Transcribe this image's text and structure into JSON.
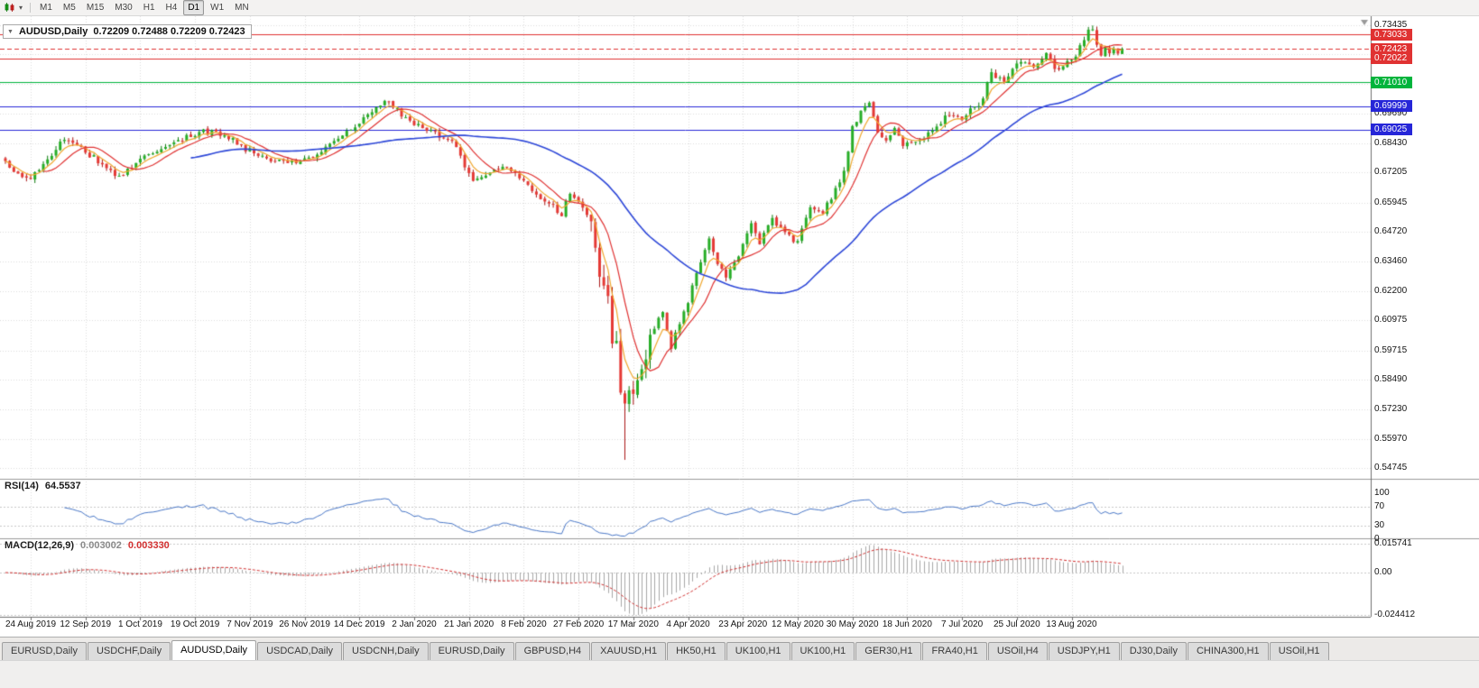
{
  "icons": {
    "dropdown_caret": "▾",
    "title_marker": "▼"
  },
  "toolbar": {
    "timeframes": [
      "M1",
      "M5",
      "M15",
      "M30",
      "H1",
      "H4",
      "D1",
      "W1",
      "MN"
    ],
    "active_timeframe": "D1"
  },
  "chart_header": {
    "title": "AUDUSD,Daily",
    "ohlc_text": "0.72209 0.72488 0.72209 0.72423"
  },
  "price_axis": {
    "scale_labels": [
      {
        "text": "0.73435",
        "price": 0.73435
      },
      {
        "text": "0.69690",
        "price": 0.6969
      },
      {
        "text": "0.68430",
        "price": 0.6843
      },
      {
        "text": "0.67205",
        "price": 0.67205
      },
      {
        "text": "0.65945",
        "price": 0.65945
      },
      {
        "text": "0.64720",
        "price": 0.6472
      },
      {
        "text": "0.63460",
        "price": 0.6346
      },
      {
        "text": "0.62200",
        "price": 0.622
      },
      {
        "text": "0.60975",
        "price": 0.60975
      },
      {
        "text": "0.59715",
        "price": 0.59715
      },
      {
        "text": "0.58490",
        "price": 0.5849
      },
      {
        "text": "0.57230",
        "price": 0.5723
      },
      {
        "text": "0.55970",
        "price": 0.5597
      },
      {
        "text": "0.54745",
        "price": 0.54745
      }
    ],
    "line_labels": [
      {
        "text": "0.73033",
        "price": 0.73033,
        "color": "#e03232",
        "kind": "resistance-upper"
      },
      {
        "text": "0.72423",
        "price": 0.72423,
        "color": "#e03232",
        "kind": "current-price"
      },
      {
        "text": "0.72022",
        "price": 0.72022,
        "color": "#e03232",
        "kind": "resistance-lower"
      },
      {
        "text": "0.71010",
        "price": 0.7101,
        "color": "#00b43c",
        "kind": "support-green"
      },
      {
        "text": "0.69999",
        "price": 0.69999,
        "color": "#2626d8",
        "kind": "support-blue-upper"
      },
      {
        "text": "0.69025",
        "price": 0.69025,
        "color": "#2626d8",
        "kind": "support-blue-lower"
      }
    ]
  },
  "indicators": {
    "rsi": {
      "name": "RSI(14)",
      "value": "64.5537",
      "axis_labels": [
        {
          "text": "100",
          "v": 100
        },
        {
          "text": "70",
          "v": 70
        },
        {
          "text": "30",
          "v": 30
        },
        {
          "text": "0",
          "v": 0
        }
      ]
    },
    "macd": {
      "name": "MACD(12,26,9)",
      "main_value": "0.003002",
      "signal_value": "0.003330",
      "axis_labels": [
        {
          "text": "0.015741",
          "v": 0.015741
        },
        {
          "text": "0.00",
          "v": 0
        },
        {
          "text": "-0.024412",
          "v": -0.024412
        }
      ]
    }
  },
  "tabs": {
    "active_index": 2,
    "items": [
      "EURUSD,Daily",
      "USDCHF,Daily",
      "AUDUSD,Daily",
      "USDCAD,Daily",
      "USDCNH,Daily",
      "EURUSD,Daily",
      "GBPUSD,H4",
      "XAUUSD,H1",
      "HK50,H1",
      "UK100,H1",
      "UK100,H1",
      "GER30,H1",
      "FRA40,H1",
      "USOil,H4",
      "USDJPY,H1",
      "DJ30,Daily",
      "CHINA300,H1",
      "USOil,H1"
    ]
  },
  "chart_data": {
    "type": "candlestick",
    "symbol": "AUDUSD",
    "period": "Daily",
    "current_bar": {
      "open": 0.72209,
      "high": 0.72488,
      "low": 0.72209,
      "close": 0.72423
    },
    "visible_range": {
      "price_min": 0.543,
      "price_max": 0.738,
      "first_date": "24 Aug 2019",
      "last_date": "2 Sep 2020"
    },
    "horizontal_lines": [
      {
        "price": 0.73033,
        "color": "#e03232",
        "style": "solid"
      },
      {
        "price": 0.72423,
        "color": "#e03232",
        "style": "dashed"
      },
      {
        "price": 0.72022,
        "color": "#e03232",
        "style": "solid"
      },
      {
        "price": 0.7101,
        "color": "#00b43c",
        "style": "solid"
      },
      {
        "price": 0.69999,
        "color": "#2626d8",
        "style": "solid"
      },
      {
        "price": 0.69025,
        "color": "#2626d8",
        "style": "solid"
      }
    ],
    "gridline_prices": [
      0.73435,
      0.7219,
      0.70945,
      0.6969,
      0.6843,
      0.67205,
      0.65945,
      0.6472,
      0.6346,
      0.622,
      0.60975,
      0.59715,
      0.5849,
      0.5723,
      0.5597,
      0.54745
    ],
    "candle_count": 266,
    "close_anchors": [
      [
        0,
        0.676
      ],
      [
        3,
        0.6712
      ],
      [
        6,
        0.669
      ],
      [
        14,
        0.6865
      ],
      [
        18,
        0.682
      ],
      [
        22,
        0.677
      ],
      [
        27,
        0.67
      ],
      [
        33,
        0.679
      ],
      [
        40,
        0.685
      ],
      [
        47,
        0.6895
      ],
      [
        52,
        0.688
      ],
      [
        57,
        0.682
      ],
      [
        63,
        0.677
      ],
      [
        68,
        0.676
      ],
      [
        75,
        0.681
      ],
      [
        82,
        0.69
      ],
      [
        88,
        0.7
      ],
      [
        91,
        0.702
      ],
      [
        96,
        0.693
      ],
      [
        101,
        0.69
      ],
      [
        106,
        0.685
      ],
      [
        111,
        0.669
      ],
      [
        114,
        0.672
      ],
      [
        118,
        0.6745
      ],
      [
        123,
        0.6685
      ],
      [
        127,
        0.662
      ],
      [
        132,
        0.6545
      ],
      [
        134,
        0.664
      ],
      [
        136,
        0.659
      ],
      [
        139,
        0.651
      ],
      [
        141,
        0.629
      ],
      [
        143,
        0.622
      ],
      [
        144,
        0.598
      ],
      [
        145,
        0.6
      ],
      [
        146,
        0.577
      ],
      [
        147,
        0.574
      ],
      [
        148,
        0.58
      ],
      [
        150,
        0.582
      ],
      [
        152,
        0.596
      ],
      [
        154,
        0.607
      ],
      [
        156,
        0.614
      ],
      [
        158,
        0.599
      ],
      [
        160,
        0.609
      ],
      [
        162,
        0.618
      ],
      [
        165,
        0.635
      ],
      [
        167,
        0.644
      ],
      [
        169,
        0.633
      ],
      [
        171,
        0.629
      ],
      [
        174,
        0.637
      ],
      [
        177,
        0.651
      ],
      [
        179,
        0.642
      ],
      [
        182,
        0.653
      ],
      [
        185,
        0.646
      ],
      [
        188,
        0.643
      ],
      [
        191,
        0.6565
      ],
      [
        194,
        0.655
      ],
      [
        197,
        0.665
      ],
      [
        199,
        0.672
      ],
      [
        201,
        0.692
      ],
      [
        203,
        0.697
      ],
      [
        205,
        0.7015
      ],
      [
        207,
        0.688
      ],
      [
        209,
        0.685
      ],
      [
        211,
        0.692
      ],
      [
        213,
        0.6835
      ],
      [
        216,
        0.686
      ],
      [
        218,
        0.6865
      ],
      [
        221,
        0.692
      ],
      [
        224,
        0.6965
      ],
      [
        227,
        0.695
      ],
      [
        229,
        0.6985
      ],
      [
        231,
        0.7
      ],
      [
        234,
        0.7135
      ],
      [
        237,
        0.71
      ],
      [
        239,
        0.716
      ],
      [
        242,
        0.719
      ],
      [
        244,
        0.7155
      ],
      [
        247,
        0.723
      ],
      [
        249,
        0.716
      ],
      [
        252,
        0.718
      ],
      [
        254,
        0.7215
      ],
      [
        256,
        0.729
      ],
      [
        258,
        0.7335
      ],
      [
        259,
        0.727
      ],
      [
        260,
        0.7225
      ],
      [
        261,
        0.724
      ],
      [
        262,
        0.7215
      ],
      [
        263,
        0.7255
      ],
      [
        264,
        0.722
      ],
      [
        265,
        0.72423
      ]
    ],
    "extremes": {
      "crash_index": 147,
      "crash_low": 0.551,
      "peak_index": 258,
      "peak_high": 0.7341
    },
    "moving_averages": [
      {
        "type": "ema",
        "period": 5,
        "color": "#f0a830"
      },
      {
        "type": "sma",
        "period": 10,
        "color": "#e03232"
      },
      {
        "type": "sma",
        "period": 45,
        "color": "#2d47d8"
      }
    ],
    "rsi_period": 14,
    "macd_params": {
      "fast": 12,
      "slow": 26,
      "signal": 9
    },
    "x_ticks": [
      {
        "label": "24 Aug 2019",
        "index": 6
      },
      {
        "label": "12 Sep 2019",
        "index": 19
      },
      {
        "label": "1 Oct 2019",
        "index": 32
      },
      {
        "label": "19 Oct 2019",
        "index": 45
      },
      {
        "label": "7 Nov 2019",
        "index": 58
      },
      {
        "label": "26 Nov 2019",
        "index": 71
      },
      {
        "label": "14 Dec 2019",
        "index": 84
      },
      {
        "label": "2 Jan 2020",
        "index": 97
      },
      {
        "label": "21 Jan 2020",
        "index": 110
      },
      {
        "label": "8 Feb 2020",
        "index": 123
      },
      {
        "label": "27 Feb 2020",
        "index": 136
      },
      {
        "label": "17 Mar 2020",
        "index": 149
      },
      {
        "label": "4 Apr 2020",
        "index": 162
      },
      {
        "label": "23 Apr 2020",
        "index": 175
      },
      {
        "label": "12 May 2020",
        "index": 188
      },
      {
        "label": "30 May 2020",
        "index": 201
      },
      {
        "label": "18 Jun 2020",
        "index": 214
      },
      {
        "label": "7 Jul 2020",
        "index": 227
      },
      {
        "label": "25 Jul 2020",
        "index": 240
      },
      {
        "label": "13 Aug 2020",
        "index": 253
      }
    ]
  },
  "colors": {
    "bull": "#27ae27",
    "bull_border": "#0a7a0a",
    "bear": "#e53935",
    "bear_border": "#a91515",
    "grid": "#dcdcdc",
    "rsi_line": "#4a78c8",
    "macd_hist": "#a8a8a8",
    "macd_signal": "#d23030",
    "separator": "#9a9a9a",
    "axis_line": "#707070"
  }
}
